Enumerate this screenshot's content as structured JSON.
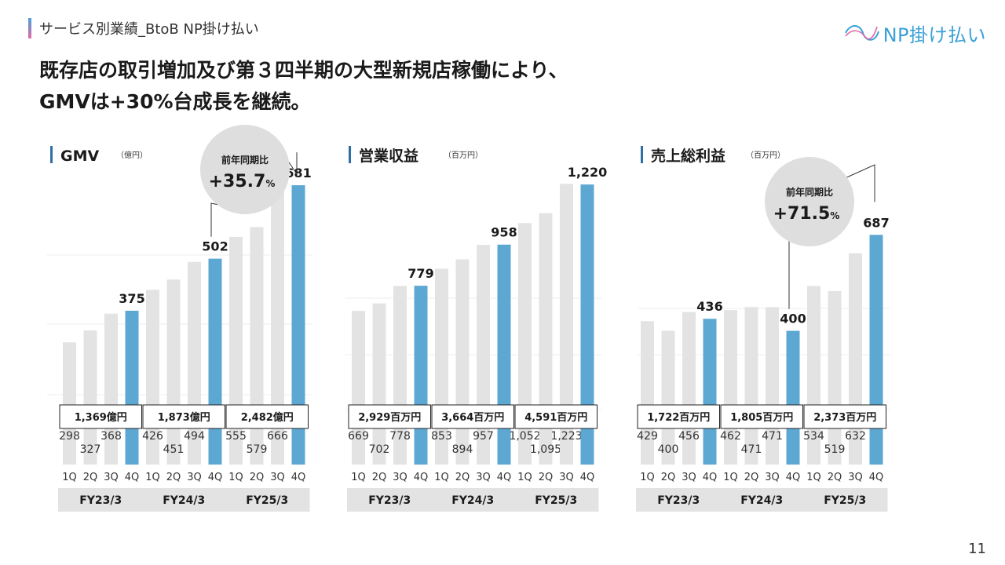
{
  "header": {
    "section_title": "サービス別業績_BtoB NP掛け払い",
    "logo_text": "NP掛け払い",
    "page_number": "11"
  },
  "headline": {
    "line1": "既存店の取引増加及び第３四半期の大型新規店稼働により、",
    "line2": "GMVは+30%台成長を継続。"
  },
  "colors": {
    "highlight": "#5da8d3",
    "bar": "#e3e3e3",
    "box_bg": "#e3e3e3"
  },
  "quarters": [
    "1Q",
    "2Q",
    "3Q",
    "4Q"
  ],
  "fiscal_years": [
    "FY23/3",
    "FY24/3",
    "FY25/3"
  ],
  "chart_data": [
    {
      "type": "bar",
      "title": "GMV",
      "unit": "（億円）",
      "categories": [
        "1Q",
        "2Q",
        "3Q",
        "4Q",
        "1Q",
        "2Q",
        "3Q",
        "4Q",
        "1Q",
        "2Q",
        "3Q",
        "4Q"
      ],
      "values": [
        298,
        327,
        368,
        375,
        426,
        451,
        494,
        502,
        555,
        579,
        666,
        681
      ],
      "value_labels": [
        "298",
        "327",
        "368",
        "375",
        "426",
        "451",
        "494",
        "502",
        "555",
        "579",
        "666",
        "681"
      ],
      "annual_totals": [
        "1,369億円",
        "1,873億円",
        "2,482億円"
      ],
      "highlight_indices": [
        3,
        7,
        11
      ],
      "ylim": [
        0,
        750
      ],
      "callout": {
        "label": "前年同期比",
        "value": "+35.7",
        "suffix": "%"
      }
    },
    {
      "type": "bar",
      "title": "営業収益",
      "unit": "（百万円）",
      "categories": [
        "1Q",
        "2Q",
        "3Q",
        "4Q",
        "1Q",
        "2Q",
        "3Q",
        "4Q",
        "1Q",
        "2Q",
        "3Q",
        "4Q"
      ],
      "values": [
        669,
        702,
        778,
        779,
        853,
        894,
        957,
        958,
        1052,
        1095,
        1223,
        1220
      ],
      "value_labels": [
        "669",
        "702",
        "778",
        "779",
        "853",
        "894",
        "957",
        "958",
        "1,052",
        "1,095",
        "1,223",
        "1,220"
      ],
      "annual_totals": [
        "2,929百万円",
        "3,664百万円",
        "4,591百万円"
      ],
      "highlight_indices": [
        3,
        7,
        11
      ],
      "ylim": [
        0,
        1340
      ]
    },
    {
      "type": "bar",
      "title": "売上総利益",
      "unit": "（百万円）",
      "categories": [
        "1Q",
        "2Q",
        "3Q",
        "4Q",
        "1Q",
        "2Q",
        "3Q",
        "4Q",
        "1Q",
        "2Q",
        "3Q",
        "4Q"
      ],
      "values": [
        429,
        400,
        456,
        436,
        462,
        471,
        471,
        400,
        534,
        519,
        632,
        687
      ],
      "value_labels": [
        "429",
        "400",
        "456",
        "436",
        "462",
        "471",
        "471",
        "400",
        "534",
        "519",
        "632",
        "687"
      ],
      "annual_totals": [
        "1,722百万円",
        "1,805百万円",
        "2,373百万円"
      ],
      "highlight_indices": [
        3,
        7,
        11
      ],
      "ylim": [
        0,
        920
      ],
      "callout": {
        "label": "前年同期比",
        "value": "+71.5",
        "suffix": "%"
      }
    }
  ]
}
